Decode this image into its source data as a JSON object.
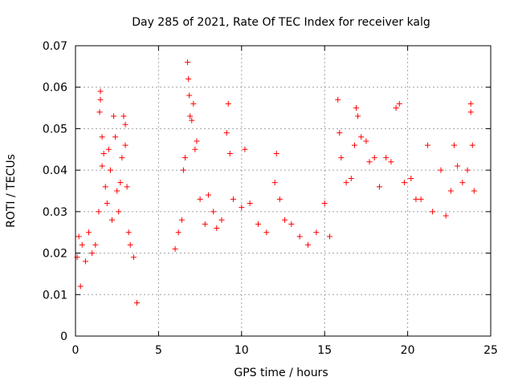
{
  "chart_data": {
    "type": "scatter",
    "title": "Day 285 of 2021, Rate Of TEC Index for receiver kalg",
    "xlabel": "GPS time / hours",
    "ylabel": "ROTI / TECUs",
    "xlim": [
      0,
      25
    ],
    "ylim": [
      0,
      0.07
    ],
    "x_ticks": [
      "0",
      "5",
      "10",
      "15",
      "20",
      "25"
    ],
    "y_ticks": [
      "0",
      "0.01",
      "0.02",
      "0.03",
      "0.04",
      "0.05",
      "0.06",
      "0.07"
    ],
    "grid": true,
    "marker": "+",
    "marker_color": "#ff0000",
    "series": [
      {
        "points": [
          [
            0.1,
            0.019
          ],
          [
            0.2,
            0.024
          ],
          [
            0.3,
            0.012
          ],
          [
            0.4,
            0.022
          ],
          [
            0.6,
            0.018
          ],
          [
            0.8,
            0.025
          ],
          [
            1.0,
            0.02
          ],
          [
            1.2,
            0.022
          ],
          [
            1.4,
            0.03
          ],
          [
            1.5,
            0.059
          ],
          [
            1.5,
            0.057
          ],
          [
            1.45,
            0.054
          ],
          [
            1.6,
            0.048
          ],
          [
            1.6,
            0.041
          ],
          [
            1.7,
            0.044
          ],
          [
            1.8,
            0.036
          ],
          [
            1.9,
            0.032
          ],
          [
            2.0,
            0.045
          ],
          [
            2.1,
            0.04
          ],
          [
            2.2,
            0.028
          ],
          [
            2.3,
            0.053
          ],
          [
            2.4,
            0.048
          ],
          [
            2.5,
            0.035
          ],
          [
            2.6,
            0.03
          ],
          [
            2.7,
            0.037
          ],
          [
            2.8,
            0.043
          ],
          [
            2.9,
            0.053
          ],
          [
            3.0,
            0.051
          ],
          [
            3.0,
            0.046
          ],
          [
            3.1,
            0.036
          ],
          [
            3.2,
            0.025
          ],
          [
            3.3,
            0.022
          ],
          [
            3.5,
            0.019
          ],
          [
            3.7,
            0.008
          ],
          [
            6.0,
            0.021
          ],
          [
            6.2,
            0.025
          ],
          [
            6.4,
            0.028
          ],
          [
            6.5,
            0.04
          ],
          [
            6.6,
            0.043
          ],
          [
            6.75,
            0.066
          ],
          [
            6.8,
            0.062
          ],
          [
            6.85,
            0.058
          ],
          [
            6.9,
            0.053
          ],
          [
            7.0,
            0.052
          ],
          [
            7.1,
            0.056
          ],
          [
            7.2,
            0.045
          ],
          [
            7.3,
            0.047
          ],
          [
            7.5,
            0.033
          ],
          [
            7.8,
            0.027
          ],
          [
            8.0,
            0.034
          ],
          [
            8.3,
            0.03
          ],
          [
            8.5,
            0.026
          ],
          [
            8.8,
            0.028
          ],
          [
            9.2,
            0.056
          ],
          [
            9.1,
            0.049
          ],
          [
            9.3,
            0.044
          ],
          [
            9.5,
            0.033
          ],
          [
            10.0,
            0.031
          ],
          [
            10.2,
            0.045
          ],
          [
            10.5,
            0.032
          ],
          [
            11.0,
            0.027
          ],
          [
            11.5,
            0.025
          ],
          [
            12.0,
            0.037
          ],
          [
            12.1,
            0.044
          ],
          [
            12.3,
            0.033
          ],
          [
            12.6,
            0.028
          ],
          [
            13.0,
            0.027
          ],
          [
            13.5,
            0.024
          ],
          [
            14.0,
            0.022
          ],
          [
            14.5,
            0.025
          ],
          [
            15.0,
            0.032
          ],
          [
            15.3,
            0.024
          ],
          [
            15.8,
            0.057
          ],
          [
            15.9,
            0.049
          ],
          [
            16.0,
            0.043
          ],
          [
            16.3,
            0.037
          ],
          [
            16.6,
            0.038
          ],
          [
            16.8,
            0.046
          ],
          [
            16.9,
            0.055
          ],
          [
            17.0,
            0.053
          ],
          [
            17.2,
            0.048
          ],
          [
            17.5,
            0.047
          ],
          [
            17.7,
            0.042
          ],
          [
            18.0,
            0.043
          ],
          [
            18.3,
            0.036
          ],
          [
            18.7,
            0.043
          ],
          [
            19.0,
            0.042
          ],
          [
            19.3,
            0.055
          ],
          [
            19.5,
            0.056
          ],
          [
            19.8,
            0.037
          ],
          [
            20.2,
            0.038
          ],
          [
            20.5,
            0.033
          ],
          [
            20.8,
            0.033
          ],
          [
            21.2,
            0.046
          ],
          [
            21.5,
            0.03
          ],
          [
            22.0,
            0.04
          ],
          [
            22.3,
            0.029
          ],
          [
            22.6,
            0.035
          ],
          [
            22.8,
            0.046
          ],
          [
            23.0,
            0.041
          ],
          [
            23.3,
            0.037
          ],
          [
            23.6,
            0.04
          ],
          [
            23.8,
            0.056
          ],
          [
            23.8,
            0.054
          ],
          [
            23.9,
            0.046
          ],
          [
            24.0,
            0.035
          ]
        ]
      }
    ]
  }
}
